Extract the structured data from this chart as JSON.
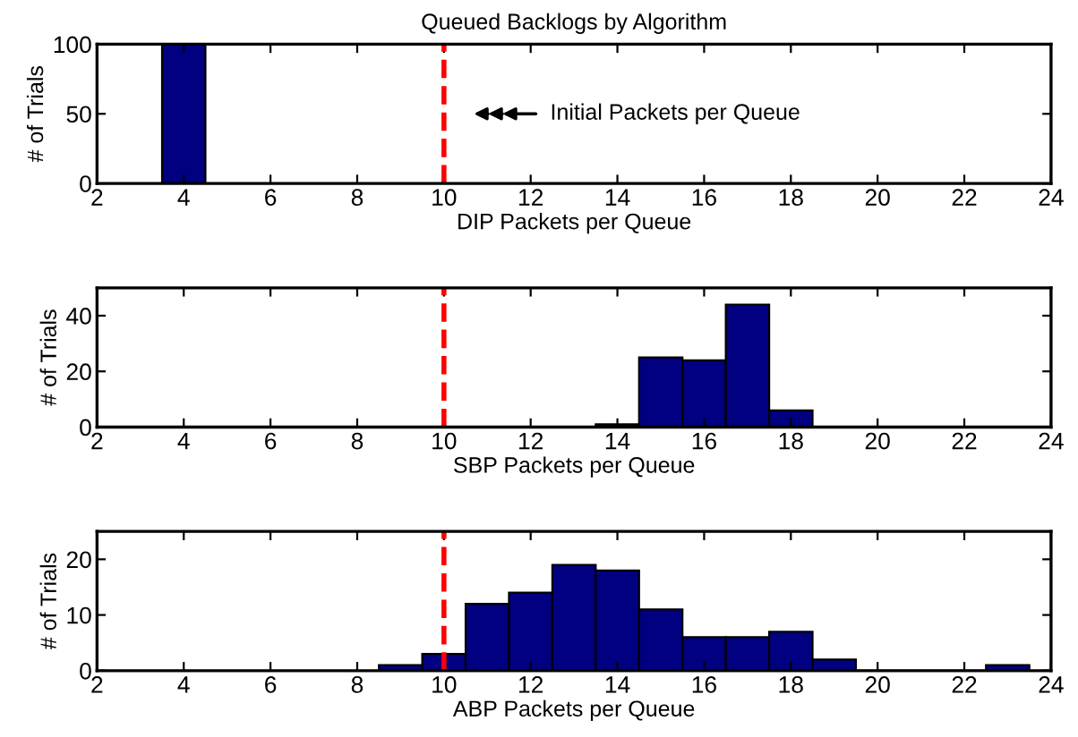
{
  "chart_data": [
    {
      "type": "histogram",
      "title": "Queued Backlogs by Algorithm",
      "xlabel": "DIP Packets per Queue",
      "ylabel": "# of Trials",
      "bins": [
        3.5,
        4.5
      ],
      "values": [
        100
      ],
      "color": "#000080",
      "xlim": [
        2,
        24
      ],
      "xticks": [
        2,
        4,
        6,
        8,
        10,
        12,
        14,
        16,
        18,
        20,
        22,
        24
      ],
      "ylim": [
        0,
        100
      ],
      "yticks": [
        0,
        50,
        100
      ],
      "ref_lines": [
        {
          "axis": "x",
          "value": 10,
          "color": "#ff0000",
          "line_style": "dashed"
        }
      ],
      "annotations": [
        "Initial Packets per Queue"
      ],
      "grid": false,
      "legend": false
    },
    {
      "type": "histogram",
      "xlabel": "SBP Packets per Queue",
      "ylabel": "# of Trials",
      "bins": [
        13.5,
        14.5,
        15.5,
        16.5,
        17.5,
        18.5
      ],
      "values": [
        1,
        25,
        24,
        44,
        6
      ],
      "color": "#000080",
      "xlim": [
        2,
        24
      ],
      "xticks": [
        2,
        4,
        6,
        8,
        10,
        12,
        14,
        16,
        18,
        20,
        22,
        24
      ],
      "ylim": [
        0,
        50
      ],
      "yticks": [
        0,
        20,
        40
      ],
      "ref_lines": [
        {
          "axis": "x",
          "value": 10,
          "color": "#ff0000",
          "line_style": "dashed"
        }
      ],
      "grid": false,
      "legend": false
    },
    {
      "type": "histogram",
      "xlabel": "ABP Packets per Queue",
      "ylabel": "# of Trials",
      "bins": [
        8.5,
        9.5,
        10.5,
        11.5,
        12.5,
        13.5,
        14.5,
        15.5,
        16.5,
        17.5,
        18.5,
        19.5,
        20.5,
        21.5,
        22.5,
        23.5
      ],
      "values": [
        1,
        3,
        12,
        14,
        19,
        18,
        11,
        6,
        6,
        7,
        2,
        0,
        0,
        0,
        1
      ],
      "color": "#000080",
      "xlim": [
        2,
        24
      ],
      "xticks": [
        2,
        4,
        6,
        8,
        10,
        12,
        14,
        16,
        18,
        20,
        22,
        24
      ],
      "ylim": [
        0,
        25
      ],
      "yticks": [
        0,
        10,
        20
      ],
      "ref_lines": [
        {
          "axis": "x",
          "value": 10,
          "color": "#ff0000",
          "line_style": "dashed"
        }
      ],
      "grid": false,
      "legend": false
    }
  ]
}
